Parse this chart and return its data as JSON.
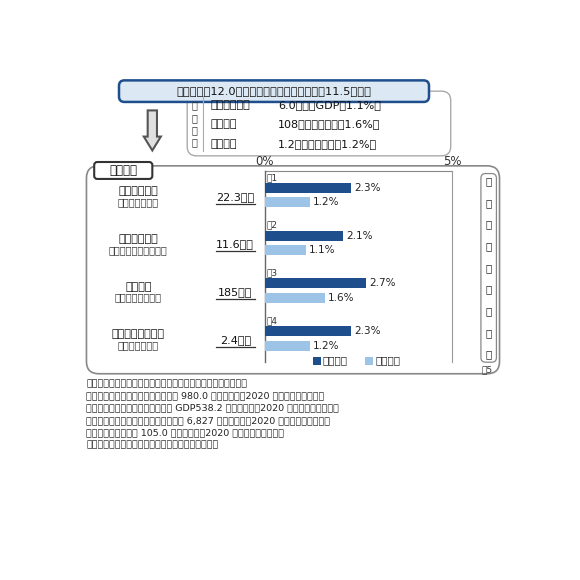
{
  "title_box": "旅行消費額12.0兆円（国内産業への直接効果11.5兆円）",
  "direct_label_chars": [
    "直",
    "接",
    "効",
    "果"
  ],
  "direct_effects": [
    {
      "name": "付加価値効果",
      "value": "6.0兆円（GDPの1.1%）"
    },
    {
      "name": "雇用効果",
      "value": "108万人（全雇用の1.6%）"
    },
    {
      "name": "税収効果",
      "value": "1.2兆円（全税収の1.2%）"
    }
  ],
  "ripple_label": "波及効果",
  "bars": [
    {
      "label1": "生産波及効果",
      "label2": "（生産誘発額）",
      "amount": "22.3兆円",
      "note": "注1",
      "direct_val": 1.2,
      "ripple_val": 2.3,
      "direct_label": "1.2%",
      "ripple_label": "2.3%"
    },
    {
      "label1": "付加価値効果",
      "label2": "（粗付加価値誘発額）",
      "amount": "11.6兆円",
      "note": "注2",
      "direct_val": 1.1,
      "ripple_val": 2.1,
      "direct_label": "1.1%",
      "ripple_label": "2.1%"
    },
    {
      "label1": "雇用効果",
      "label2": "（雇用誘発者数）",
      "amount": "185万人",
      "note": "注3",
      "direct_val": 1.6,
      "ripple_val": 2.7,
      "direct_label": "1.6%",
      "ripple_label": "2.7%"
    },
    {
      "label1": "税収効果＜試算＞",
      "label2": "（誘発税収額）",
      "amount": "2.4兆円",
      "note": "注4",
      "direct_val": 1.2,
      "ripple_val": 2.3,
      "direct_label": "1.2%",
      "ripple_label": "2.3%"
    }
  ],
  "bar_color_ripple": "#1f4e8c",
  "bar_color_direct": "#9dc3e6",
  "side_label_chars": [
    "日",
    "本",
    "経",
    "済",
    "へ",
    "の",
    "貢",
    "献",
    "度"
  ],
  "legend_ripple": "波及効果",
  "legend_direct": "直接効果",
  "footnote_note5": "注5",
  "footnotes": [
    "資料：観光庁「旅行・観光産業の経済効果に関する調査研究」",
    "注１：国民経済計算における産出額 980.0 兆円に対応（2020 年（令和２年））。",
    "注２：国民経済計算における名目 GDP538.2 兆円に対応（2020 年（令和２年））。",
    "注３：国民経済計算における就業者数 6,827 万人に対応（2020 年（令和２年））。",
    "注４：国税＋地方税 105.0 兆円に対応（2020 年（令和２年））。",
    "注５：ここで言う貢献度とは全産業に占める比率。"
  ],
  "bg_color": "#ffffff",
  "box_edge_color": "#1f4e8c",
  "title_bg": "#dce9f5"
}
